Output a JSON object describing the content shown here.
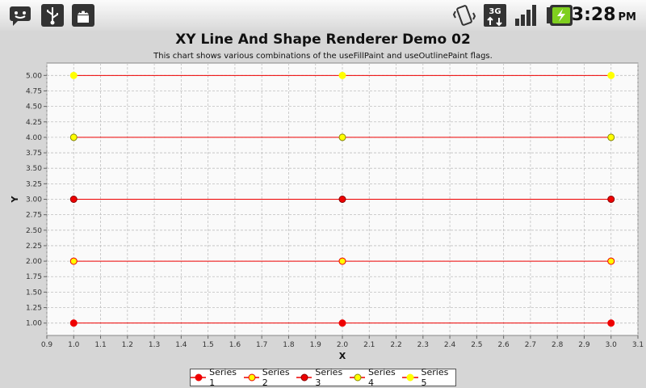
{
  "status_bar": {
    "icons": [
      "chat-notification-icon",
      "usb-icon",
      "android-debug-icon",
      "vibrate-icon",
      "3g-data-icon",
      "signal-strength-icon",
      "battery-charging-icon"
    ],
    "time": "3:28",
    "ampm": "PM"
  },
  "colors": {
    "red": "#ee0000",
    "yellow": "#ffff00",
    "plot_bg": "#fafafa",
    "grid": "#c0c0c0"
  },
  "chart_data": {
    "type": "line",
    "title": "XY Line And Shape Renderer Demo 02",
    "subtitle": "This chart shows various combinations of the useFillPaint and useOutlinePaint flags.",
    "xlabel": "X",
    "ylabel": "Y",
    "xlim": [
      0.9,
      3.1
    ],
    "ylim": [
      0.8,
      5.2
    ],
    "x_ticks": [
      "0.9",
      "1.0",
      "1.1",
      "1.2",
      "1.3",
      "1.4",
      "1.5",
      "1.6",
      "1.7",
      "1.8",
      "1.9",
      "2.0",
      "2.1",
      "2.2",
      "2.3",
      "2.4",
      "2.5",
      "2.6",
      "2.7",
      "2.8",
      "2.9",
      "3.0",
      "3.1"
    ],
    "y_ticks": [
      "1.00",
      "1.25",
      "1.50",
      "1.75",
      "2.00",
      "2.25",
      "2.50",
      "2.75",
      "3.00",
      "3.25",
      "3.50",
      "3.75",
      "4.00",
      "4.25",
      "4.50",
      "4.75",
      "5.00"
    ],
    "grid": true,
    "legend_position": "bottom",
    "series": [
      {
        "name": "Series 1",
        "x": [
          1.0,
          2.0,
          3.0
        ],
        "y": [
          1.0,
          1.0,
          1.0
        ],
        "line_color": "#ee0000",
        "fill": "#ee0000",
        "outline": "#ee0000"
      },
      {
        "name": "Series 2",
        "x": [
          1.0,
          2.0,
          3.0
        ],
        "y": [
          2.0,
          2.0,
          2.0
        ],
        "line_color": "#ee0000",
        "fill": "#ffff00",
        "outline": "#ee0000"
      },
      {
        "name": "Series 3",
        "x": [
          1.0,
          2.0,
          3.0
        ],
        "y": [
          3.0,
          3.0,
          3.0
        ],
        "line_color": "#ee0000",
        "fill": "#ee0000",
        "outline": "#880000"
      },
      {
        "name": "Series 4",
        "x": [
          1.0,
          2.0,
          3.0
        ],
        "y": [
          4.0,
          4.0,
          4.0
        ],
        "line_color": "#ee0000",
        "fill": "#ffff00",
        "outline": "#888800"
      },
      {
        "name": "Series 5",
        "x": [
          1.0,
          2.0,
          3.0
        ],
        "y": [
          5.0,
          5.0,
          5.0
        ],
        "line_color": "#ee0000",
        "fill": "#ffff00",
        "outline": "#ffff00"
      }
    ]
  }
}
